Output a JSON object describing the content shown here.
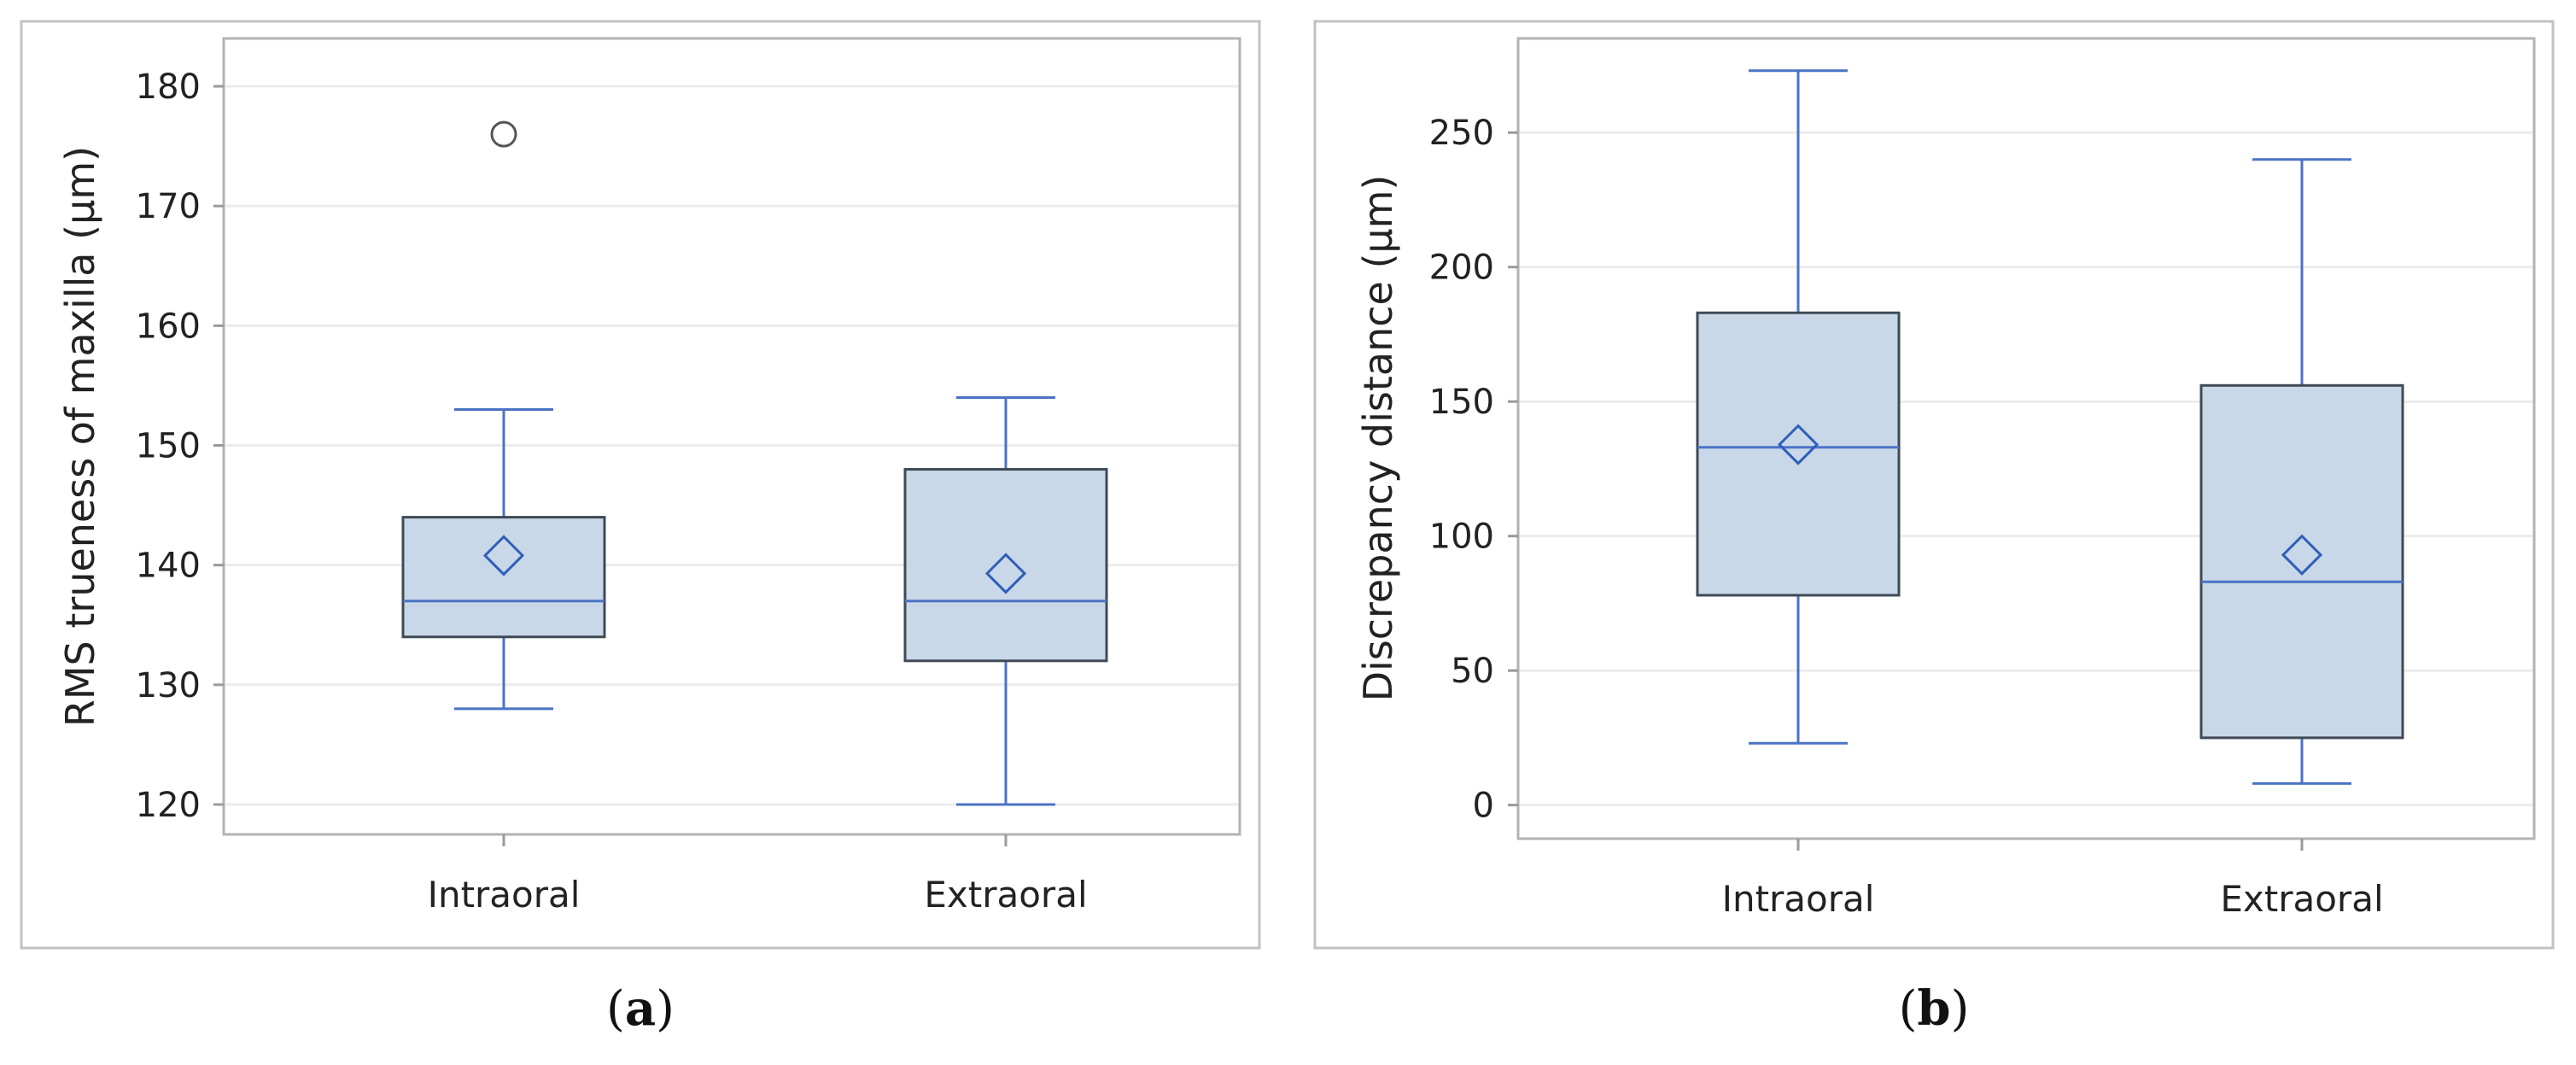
{
  "figure": {
    "colors": {
      "panel_border": "#c2c2c2",
      "plot_border": "#b3b3b3",
      "grid": "#ececec",
      "box_fill": "#c9d8e8",
      "box_stroke": "#3f4a56",
      "whisker": "#4a73c4",
      "mean_marker": "#2f5fb8",
      "outlier": "#555555",
      "text": "#222222"
    }
  },
  "chart_data": [
    {
      "type": "box",
      "caption_letter": "a",
      "ylabel": "RMS trueness of maxilla (μm)",
      "ylim": [
        117.5,
        184
      ],
      "yticks": [
        120,
        130,
        140,
        150,
        160,
        170,
        180
      ],
      "grid": true,
      "categories": [
        "Intraoral",
        "Extraoral"
      ],
      "boxes": [
        {
          "category": "Intraoral",
          "min": 128,
          "q1": 134,
          "median": 137,
          "q3": 144,
          "max": 153,
          "mean": 140.8,
          "outliers": [
            176
          ]
        },
        {
          "category": "Extraoral",
          "min": 120,
          "q1": 132,
          "median": 137,
          "q3": 148,
          "max": 154,
          "mean": 139.3,
          "outliers": []
        }
      ]
    },
    {
      "type": "box",
      "caption_letter": "b",
      "ylabel": "Discrepancy distance (μm)",
      "ylim": [
        -12.5,
        285
      ],
      "yticks": [
        0,
        50,
        100,
        150,
        200,
        250
      ],
      "grid": true,
      "categories": [
        "Intraoral",
        "Extraoral"
      ],
      "boxes": [
        {
          "category": "Intraoral",
          "min": 23,
          "q1": 78,
          "median": 133,
          "q3": 183,
          "max": 273,
          "mean": 134,
          "outliers": []
        },
        {
          "category": "Extraoral",
          "min": 8,
          "q1": 25,
          "median": 83,
          "q3": 156,
          "max": 240,
          "mean": 93,
          "outliers": []
        }
      ]
    }
  ]
}
